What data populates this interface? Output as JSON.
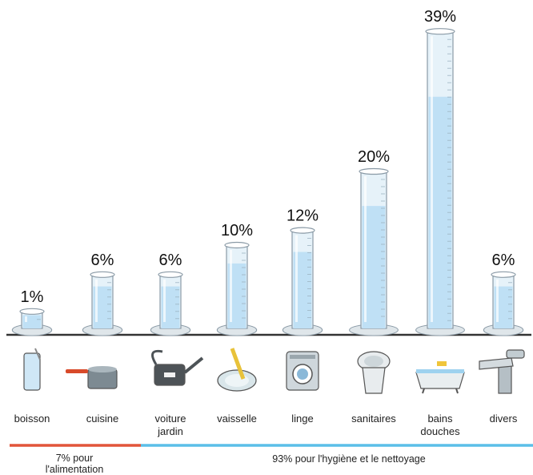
{
  "chart_data": {
    "type": "bar",
    "categories": [
      {
        "id": "boisson",
        "lines": [
          "boisson"
        ]
      },
      {
        "id": "cuisine",
        "lines": [
          "cuisine"
        ]
      },
      {
        "id": "voiture-jardin",
        "lines": [
          "voiture",
          "jardin"
        ]
      },
      {
        "id": "vaisselle",
        "lines": [
          "vaisselle"
        ]
      },
      {
        "id": "linge",
        "lines": [
          "linge"
        ]
      },
      {
        "id": "sanitaires",
        "lines": [
          "sanitaires"
        ]
      },
      {
        "id": "bains-douches",
        "lines": [
          "bains",
          "douches"
        ]
      },
      {
        "id": "divers",
        "lines": [
          "divers"
        ]
      }
    ],
    "values": [
      1,
      6,
      6,
      10,
      12,
      20,
      39,
      6
    ],
    "value_labels": [
      "1%",
      "6%",
      "6%",
      "10%",
      "12%",
      "20%",
      "39%",
      "6%"
    ],
    "icons": [
      "glass-icon",
      "saucepan-icon",
      "watering-can-icon",
      "plate-sponge-icon",
      "washing-machine-icon",
      "toilet-icon",
      "bathtub-icon",
      "faucet-icon"
    ],
    "groups": [
      {
        "lines": [
          "7% pour",
          "l'alimentation"
        ],
        "color": "#e2553a"
      },
      {
        "lines": [
          "93% pour l'hygiène et le nettoyage"
        ],
        "color": "#5bbfe8"
      }
    ],
    "colors": {
      "water": "#bfe0f5",
      "glass": "#e6f2f9",
      "outline": "#8a9aa6",
      "baseline": "#333333"
    }
  }
}
